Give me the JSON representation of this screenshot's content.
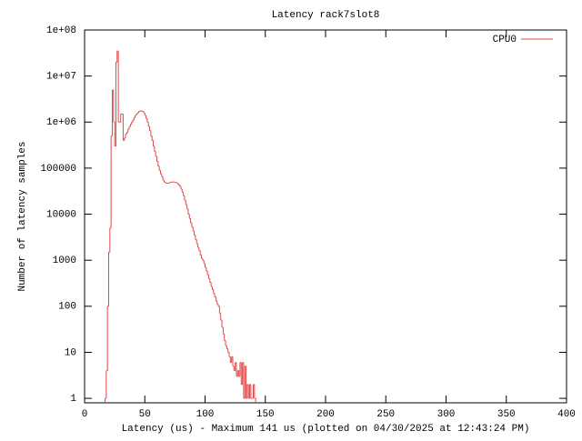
{
  "chart_data": {
    "type": "step",
    "title": "Latency rack7slot8",
    "xlabel": "Latency (us) - Maximum 141 us (plotted on 04/30/2025 at 12:43:24 PM)",
    "ylabel": "Number of latency samples",
    "log_y": true,
    "legend": "top-right",
    "xlim": [
      0,
      400
    ],
    "xticks": [
      0,
      50,
      100,
      150,
      200,
      250,
      300,
      350,
      400
    ],
    "ylim": [
      0.8,
      100000000
    ],
    "yticks": [
      1,
      10,
      100,
      1000,
      10000,
      100000,
      {
        "value": 1000000,
        "label": "1e+06"
      },
      {
        "value": 10000000,
        "label": "1e+07"
      },
      {
        "value": 100000000,
        "label": "1e+08"
      }
    ],
    "x": [
      17,
      18,
      19,
      20,
      21,
      22,
      23,
      24,
      25,
      26,
      27,
      28,
      29,
      30,
      31,
      32,
      33,
      34,
      35,
      36,
      37,
      38,
      39,
      40,
      41,
      42,
      43,
      44,
      45,
      46,
      47,
      48,
      49,
      50,
      51,
      52,
      53,
      54,
      55,
      56,
      57,
      58,
      59,
      60,
      61,
      62,
      63,
      64,
      65,
      66,
      67,
      68,
      69,
      70,
      71,
      72,
      73,
      74,
      75,
      76,
      77,
      78,
      79,
      80,
      81,
      82,
      83,
      84,
      85,
      86,
      87,
      88,
      89,
      90,
      91,
      92,
      93,
      94,
      95,
      96,
      97,
      98,
      99,
      100,
      101,
      102,
      103,
      104,
      105,
      106,
      107,
      108,
      109,
      110,
      111,
      112,
      113,
      114,
      115,
      116,
      117,
      118,
      119,
      120,
      121,
      122,
      123,
      124,
      125,
      126,
      127,
      128,
      129,
      130,
      131,
      132,
      133,
      134,
      135,
      136,
      137,
      138,
      139,
      140,
      141
    ],
    "series": [
      {
        "name": "CPU0",
        "color": "#e04848",
        "values": [
          1,
          4,
          100,
          1500,
          5000,
          500000,
          5000000,
          1000000,
          300000,
          20000000,
          35000000,
          1000000,
          1000000,
          1500000,
          1500000,
          400000,
          450000,
          550000,
          600000,
          700000,
          800000,
          900000,
          1000000,
          1100000,
          1250000,
          1400000,
          1500000,
          1600000,
          1700000,
          1750000,
          1750000,
          1700000,
          1600000,
          1400000,
          1200000,
          1000000,
          800000,
          650000,
          500000,
          400000,
          300000,
          230000,
          180000,
          140000,
          110000,
          90000,
          75000,
          65000,
          55000,
          50000,
          48000,
          47000,
          47000,
          48000,
          49000,
          50000,
          50000,
          50000,
          49000,
          48000,
          46000,
          43000,
          40000,
          35000,
          30000,
          25000,
          20000,
          16000,
          13000,
          10000,
          8000,
          6500,
          5300,
          4300,
          3500,
          2800,
          2300,
          1900,
          1600,
          1300,
          1100,
          1000,
          850,
          700,
          580,
          480,
          400,
          330,
          270,
          230,
          190,
          160,
          130,
          110,
          100,
          70,
          50,
          35,
          25,
          18,
          14,
          12,
          10,
          8,
          6,
          8,
          5,
          4,
          6,
          3,
          4,
          3,
          6,
          2,
          6,
          1,
          5,
          1,
          2,
          1,
          2,
          1,
          1,
          2,
          1
        ]
      }
    ]
  }
}
